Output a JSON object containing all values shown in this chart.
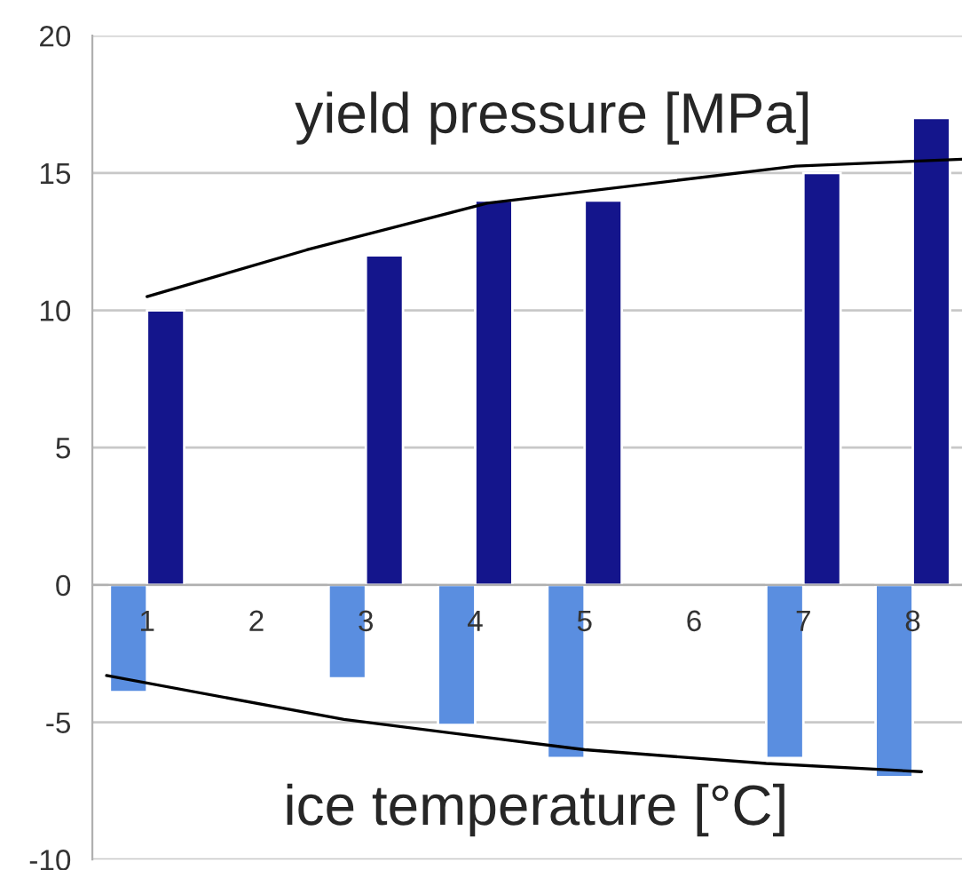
{
  "chart_data": {
    "type": "bar",
    "series": [
      {
        "color": "#14158c",
        "x": [
          1,
          3,
          4,
          5,
          7,
          8
        ],
        "values": [
          10,
          12,
          14,
          14,
          15,
          17
        ]
      },
      {
        "color": "#5a8ee0",
        "x": [
          1,
          3,
          4,
          5,
          7,
          8
        ],
        "values": [
          -3.9,
          -3.4,
          -5.1,
          -6.3,
          -6.3,
          -7.0
        ]
      },
      {
        "type": "line",
        "color": "#000000",
        "x": [
          1.0,
          2.46,
          4.11,
          6.93,
          8.45
        ],
        "values": [
          10.5,
          12.2,
          13.9,
          15.25,
          15.5
        ]
      },
      {
        "type": "line",
        "color": "#000000",
        "x": [
          0.63,
          2.8,
          5.0,
          6.66,
          8.08
        ],
        "values": [
          -3.3,
          -4.9,
          -6.0,
          -6.5,
          -6.8
        ]
      }
    ],
    "xlim": [
      0.5,
      8.45
    ],
    "xticks": [
      1,
      2,
      3,
      4,
      5,
      6,
      7,
      8
    ],
    "ylim": [
      -10,
      20
    ],
    "yticks": [
      -10,
      -5,
      0,
      5,
      10,
      15,
      20
    ],
    "grid": "y",
    "legend": false,
    "annotations": [
      "yield pressure [MPa]",
      "ice temperature [°C]"
    ]
  }
}
